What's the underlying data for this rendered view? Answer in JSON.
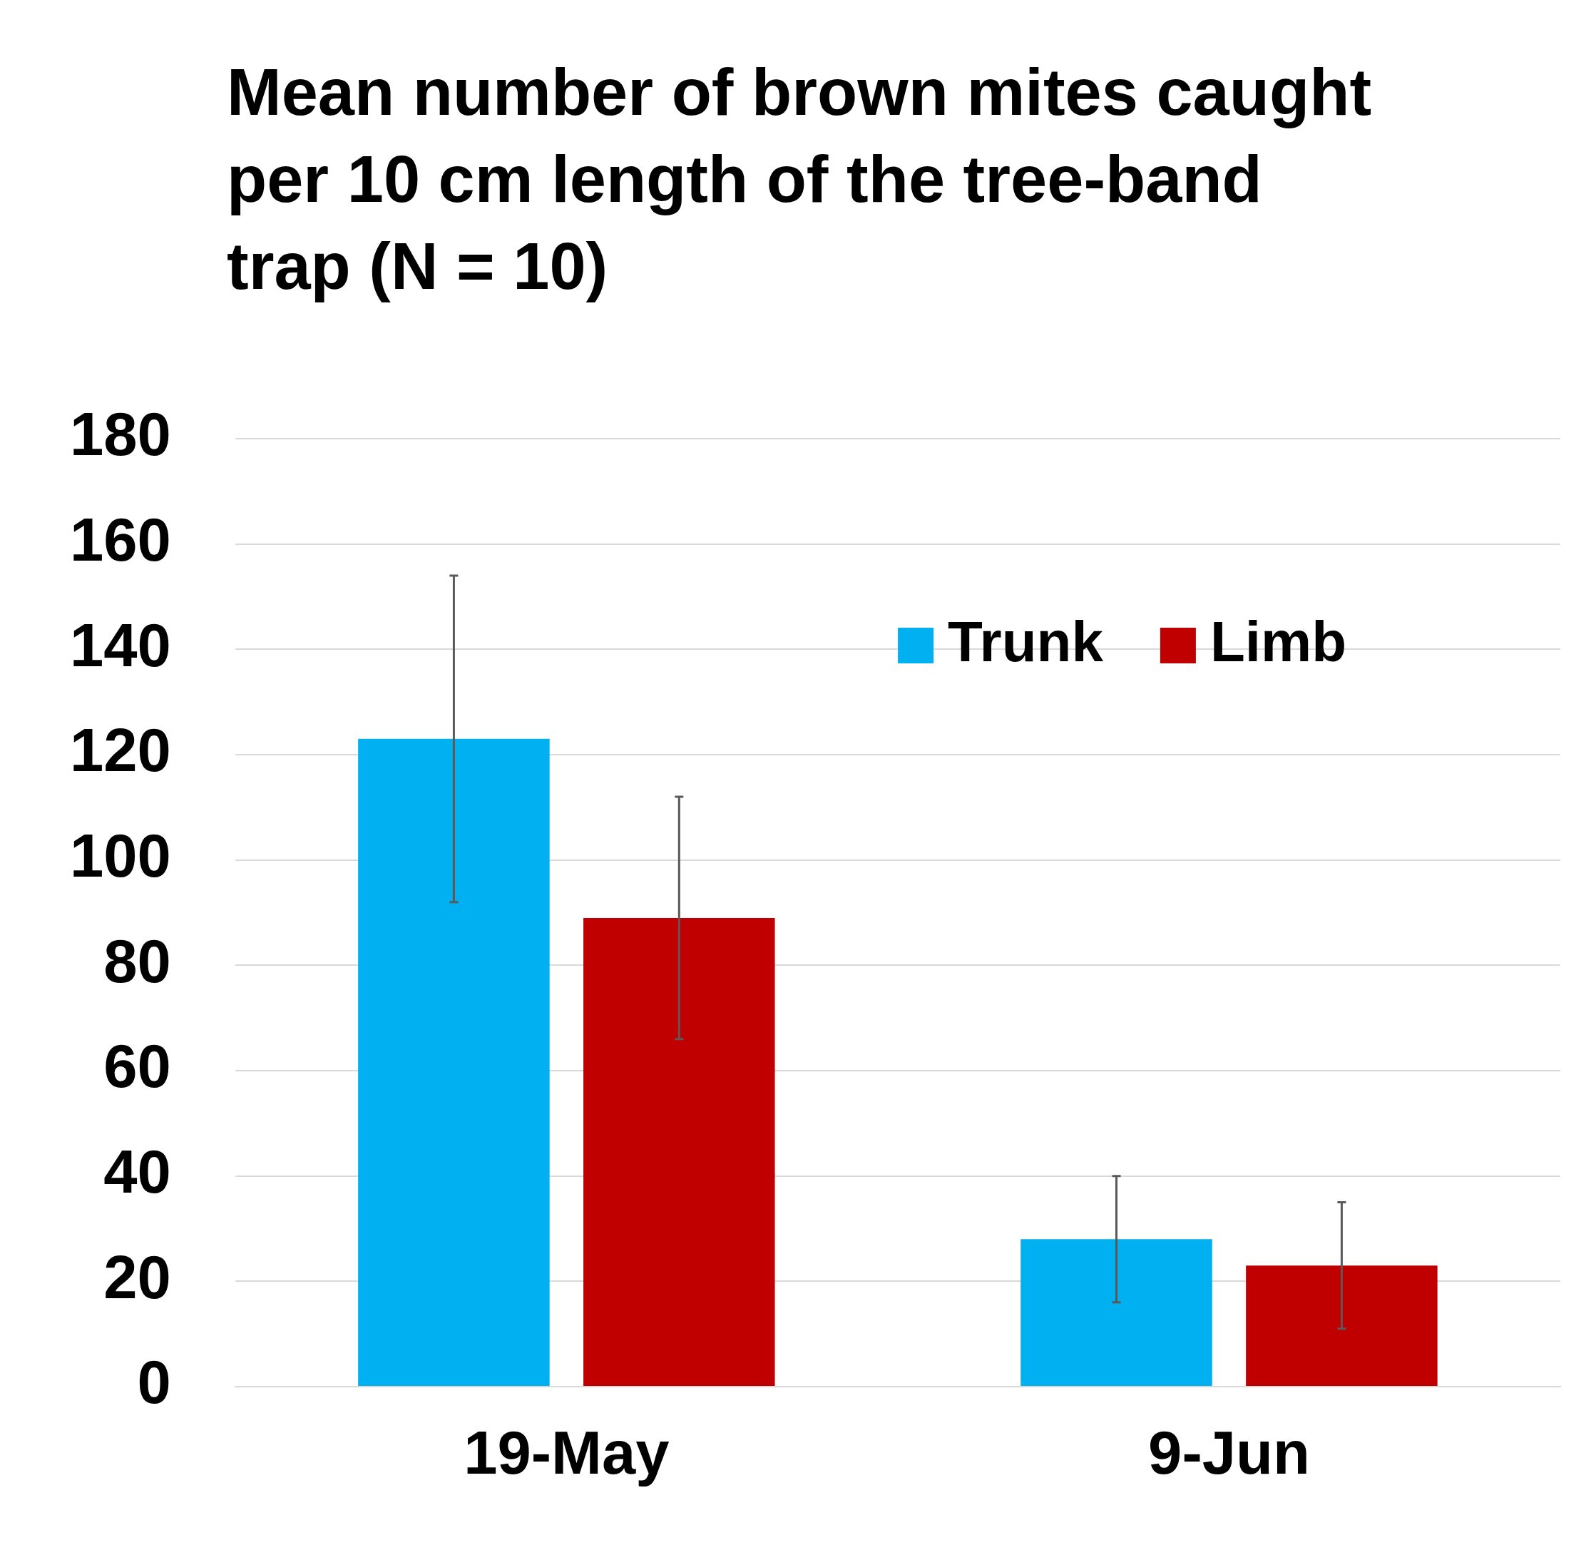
{
  "chart_data": {
    "type": "bar",
    "title": "Mean number of brown mites caught per 10 cm length of the tree-band trap (N = 10)",
    "categories": [
      "19-May",
      "9-Jun"
    ],
    "series": [
      {
        "name": "Trunk",
        "color": "#00b0f0",
        "values": [
          123,
          28
        ],
        "errors": [
          31,
          12
        ]
      },
      {
        "name": "Limb",
        "color": "#c00000",
        "values": [
          89,
          23
        ],
        "errors": [
          23,
          12
        ]
      }
    ],
    "ylim": [
      0,
      180
    ],
    "yticks": [
      0,
      20,
      40,
      60,
      80,
      100,
      120,
      140,
      160,
      180
    ],
    "grid": "y",
    "legend": "top right"
  }
}
